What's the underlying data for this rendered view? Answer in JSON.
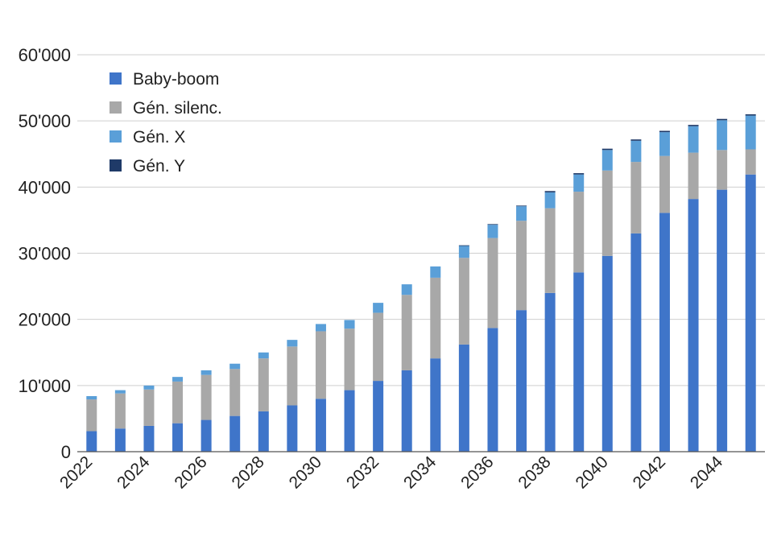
{
  "chart_data": {
    "type": "bar",
    "stacked": true,
    "categories": [
      "2022",
      "2023",
      "2024",
      "2025",
      "2026",
      "2027",
      "2028",
      "2029",
      "2030",
      "2031",
      "2032",
      "2033",
      "2034",
      "2035",
      "2036",
      "2037",
      "2038",
      "2039",
      "2040",
      "2041",
      "2042",
      "2043",
      "2044",
      "2045"
    ],
    "x_tick_labels": [
      "2022",
      "2024",
      "2026",
      "2028",
      "2030",
      "2032",
      "2034",
      "2036",
      "2038",
      "2040",
      "2042",
      "2044"
    ],
    "series": [
      {
        "name": "Baby-boom",
        "color": "#3f75c9",
        "values": [
          3100,
          3500,
          3900,
          4300,
          4800,
          5400,
          6100,
          7000,
          8000,
          9300,
          10700,
          12300,
          14100,
          16200,
          18700,
          21400,
          24000,
          27100,
          29600,
          33000,
          36100,
          38200,
          39600,
          41900
        ]
      },
      {
        "name": "Gén. silenc.",
        "color": "#a8a8a8",
        "values": [
          4800,
          5300,
          5500,
          6300,
          6800,
          7100,
          8000,
          8900,
          10200,
          9300,
          10300,
          11400,
          12200,
          13100,
          13600,
          13500,
          12800,
          12200,
          12900,
          10800,
          8600,
          7000,
          6000,
          3800
        ]
      },
      {
        "name": "Gén. X",
        "color": "#5a9fd8",
        "values": [
          500,
          500,
          600,
          700,
          700,
          800,
          900,
          1000,
          1100,
          1300,
          1500,
          1600,
          1700,
          1800,
          2000,
          2200,
          2400,
          2600,
          3100,
          3200,
          3600,
          4000,
          4500,
          5100
        ]
      },
      {
        "name": "Gén. Y",
        "color": "#1f3a68",
        "values": [
          0,
          0,
          0,
          0,
          0,
          0,
          0,
          0,
          0,
          0,
          0,
          0,
          0,
          100,
          100,
          100,
          200,
          200,
          200,
          200,
          200,
          200,
          200,
          200
        ]
      }
    ],
    "y_ticks": [
      "0",
      "10'000",
      "20'000",
      "30'000",
      "40'000",
      "50'000",
      "60'000"
    ],
    "ylim": [
      0,
      60000
    ],
    "grid": true,
    "legend_position": "top-left"
  }
}
